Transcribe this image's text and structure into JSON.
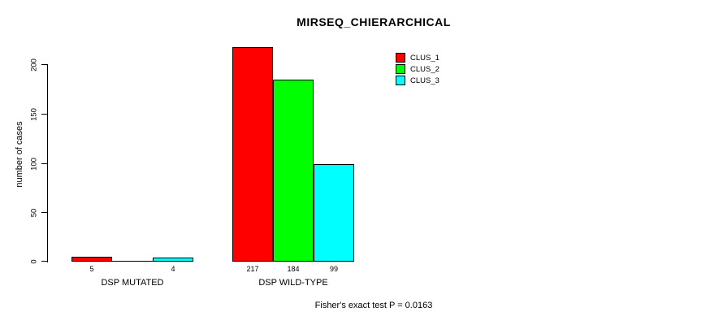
{
  "chart_data": {
    "type": "bar",
    "title": "MIRSEQ_CHIERARCHICAL",
    "ylabel": "number of cases",
    "xlabel": "",
    "ylim": [
      0,
      220
    ],
    "yticks": [
      0,
      50,
      100,
      150,
      200
    ],
    "grid": false,
    "legend_position": "top-right-inside",
    "categories": [
      "DSP MUTATED",
      "DSP WILD-TYPE"
    ],
    "series": [
      {
        "name": "CLUS_1",
        "color": "#ff0000",
        "values": [
          5,
          217
        ]
      },
      {
        "name": "CLUS_2",
        "color": "#00ff00",
        "values": [
          0,
          184
        ]
      },
      {
        "name": "CLUS_3",
        "color": "#00ffff",
        "values": [
          4,
          99
        ]
      }
    ],
    "bar_value_labels_shown": true,
    "zero_value_labels_hidden": true,
    "annotation": "Fisher's exact test P = 0.0163"
  }
}
